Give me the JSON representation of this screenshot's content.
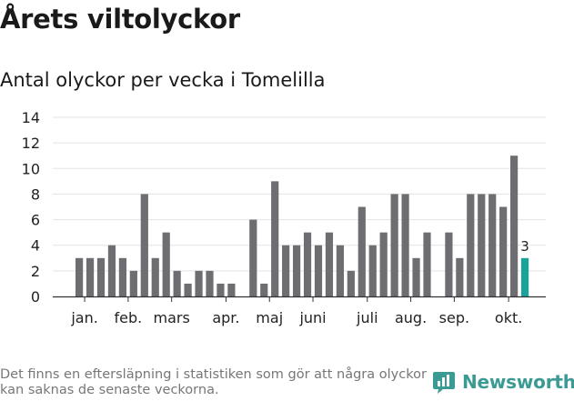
{
  "header": {
    "title": "Årets viltolyckor",
    "subtitle": "Antal olyckor per vecka i Tomelilla"
  },
  "footer": {
    "note": "Det finns en eftersläpning i statistiken som gör att några olyckor kan saknas de senaste veckorna.",
    "brand": "Newsworthy"
  },
  "colors": {
    "bar": "#6e6e72",
    "highlight": "#1aa39a",
    "grid": "#e3e3e3",
    "axis": "#333333",
    "brand": "#3a9a94"
  },
  "chart_data": {
    "type": "bar",
    "title": "Antal olyckor per vecka i Tomelilla",
    "xlabel": "",
    "ylabel": "",
    "ylim": [
      0,
      14
    ],
    "yticks": [
      0,
      2,
      4,
      6,
      8,
      10,
      12,
      14
    ],
    "grid": true,
    "weeks": [
      1,
      2,
      3,
      4,
      5,
      6,
      7,
      8,
      9,
      10,
      11,
      12,
      13,
      14,
      15,
      16,
      17,
      18,
      19,
      20,
      21,
      22,
      23,
      24,
      25,
      26,
      27,
      28,
      29,
      30,
      31,
      32,
      33,
      34,
      35,
      36,
      37,
      38,
      39,
      40,
      41,
      42,
      43
    ],
    "values": [
      3,
      3,
      3,
      4,
      3,
      2,
      8,
      3,
      5,
      2,
      1,
      2,
      2,
      1,
      1,
      0,
      6,
      1,
      9,
      4,
      4,
      5,
      4,
      5,
      4,
      2,
      7,
      4,
      5,
      8,
      8,
      3,
      5,
      0,
      5,
      3,
      8,
      8,
      8,
      7,
      11,
      3,
      null
    ],
    "highlight_week": 42,
    "data_labels": [
      {
        "week": 42,
        "text": "3"
      }
    ],
    "month_labels": [
      {
        "label": "jan.",
        "week": 1.5
      },
      {
        "label": "feb.",
        "week": 5.5
      },
      {
        "label": "mars",
        "week": 9.5
      },
      {
        "label": "apr.",
        "week": 14.5
      },
      {
        "label": "maj",
        "week": 18.5
      },
      {
        "label": "juni",
        "week": 22.5
      },
      {
        "label": "juli",
        "week": 27.5
      },
      {
        "label": "aug.",
        "week": 31.5
      },
      {
        "label": "sep.",
        "week": 35.5
      },
      {
        "label": "okt.",
        "week": 40.5
      }
    ]
  }
}
